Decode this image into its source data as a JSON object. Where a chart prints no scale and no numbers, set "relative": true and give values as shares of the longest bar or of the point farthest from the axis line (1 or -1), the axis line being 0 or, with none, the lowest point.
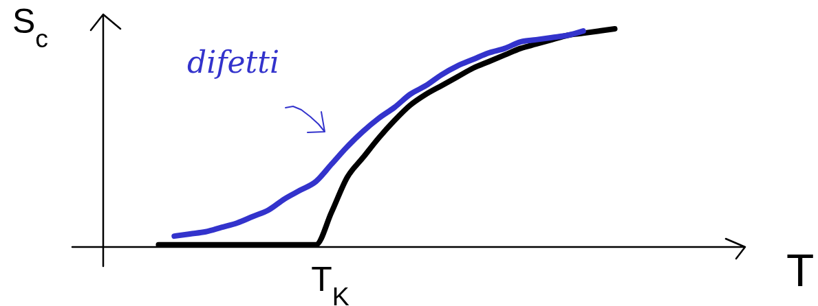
{
  "chart_data": {
    "type": "line",
    "relative": true,
    "xlabel": "T",
    "ylabel": "S$_{c}$",
    "line_style": "solid",
    "annotations": [
      "T$_{K}$"
    ],
    "categories": [
      null,
      null,
      null,
      null,
      null,
      null,
      null,
      null,
      null,
      null,
      null,
      null,
      null,
      null,
      null,
      null,
      null,
      null,
      null,
      null,
      null,
      null,
      null,
      null,
      null,
      null,
      null,
      null,
      null,
      null
    ],
    "series": [
      {
        "color": "#000000",
        "values": [
          0.01,
          0.01,
          0.01,
          0.01,
          0.01,
          0.01,
          0.01,
          0.01,
          0.01,
          0.01,
          0.01,
          0.16,
          0.32,
          0.41,
          0.5,
          0.58,
          0.65,
          0.7,
          0.74,
          0.78,
          0.82,
          0.85,
          0.88,
          0.91,
          0.93,
          0.95,
          0.97,
          0.98,
          0.99,
          1
        ]
      },
      {
        "name": "difetti",
        "color": "#3333cc",
        "values": [
          null,
          0.05,
          0.06,
          0.07,
          0.09,
          0.11,
          0.14,
          0.17,
          0.22,
          0.26,
          0.3,
          0.38,
          0.46,
          0.53,
          0.59,
          0.64,
          0.7,
          0.74,
          0.79,
          0.83,
          0.86,
          0.89,
          0.91,
          0.94,
          0.95,
          0.96,
          0.97,
          0.99,
          null,
          null
        ]
      }
    ]
  }
}
